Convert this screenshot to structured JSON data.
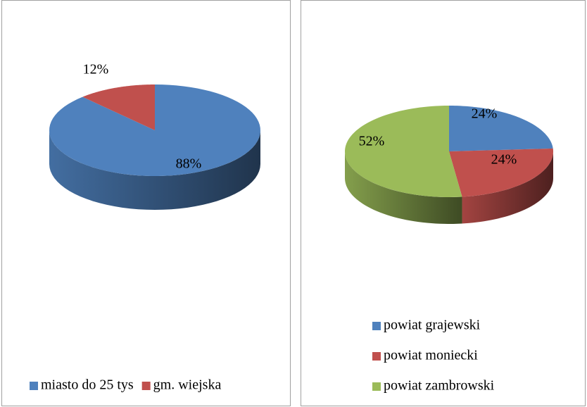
{
  "chart_data": [
    {
      "type": "pie",
      "categories": [
        "miasto do 25 tys",
        "gm. wiejska"
      ],
      "values": [
        88,
        12
      ],
      "value_labels": [
        "88%",
        "12%"
      ],
      "colors": [
        "#4f81bd",
        "#c0504d"
      ],
      "legend": "bottom"
    },
    {
      "type": "pie",
      "categories": [
        "powiat grajewski",
        "powiat moniecki",
        "powiat zambrowski"
      ],
      "values": [
        24,
        24,
        52
      ],
      "value_labels": [
        "24%",
        "24%",
        "52%"
      ],
      "colors": [
        "#4f81bd",
        "#c0504d",
        "#9bbb59"
      ],
      "legend": "bottom"
    }
  ]
}
